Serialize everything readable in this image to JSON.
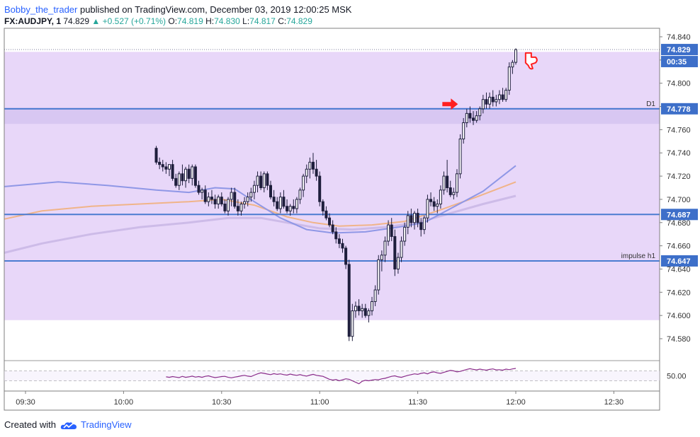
{
  "header": {
    "author": "Bobby_the_trader",
    "published_text": " published on TradingView.com, December 03, 2019 12:00:25 MSK"
  },
  "symbol_line": {
    "symbol": "FX:AUDJPY, 1",
    "last": "74.829",
    "change": "▲ +0.527 (+0.71%)",
    "o_label": "O:",
    "o": "74.819",
    "h_label": "H:",
    "h": "74.830",
    "l_label": "L:",
    "l": "74.817",
    "c_label": "C:",
    "c": "74.829"
  },
  "footer": {
    "created_with": "Created with",
    "brand": "TradingView"
  },
  "colors": {
    "zone": "#e8d7f9",
    "zone_dark": "#d8c7f2",
    "level_line": "#4a7bd1",
    "price_badge": "#3d6fc9",
    "candle": "#1e1e3c",
    "ma_blue": "#8f97e6",
    "ma_orange": "#f0b489",
    "ma_lavender": "#cdbbe8",
    "oscillator": "#8a2c8a",
    "annotation": "#ff1f1f"
  },
  "chart_data": {
    "type": "candlestick",
    "price_axis": {
      "ylim": [
        74.57,
        74.845
      ],
      "ticks": [
        "74.840",
        "74.820",
        "74.800",
        "74.780",
        "74.760",
        "74.740",
        "74.720",
        "74.700",
        "74.680",
        "74.660",
        "74.640",
        "74.620",
        "74.600",
        "74.580"
      ]
    },
    "time_axis": {
      "ticks": [
        {
          "t": 20,
          "label": "09:30"
        },
        {
          "t": 50,
          "label": "10:00"
        },
        {
          "t": 80,
          "label": "10:30"
        },
        {
          "t": 110,
          "label": "11:00"
        },
        {
          "t": 140,
          "label": "11:30"
        },
        {
          "t": 170,
          "label": "12:00"
        },
        {
          "t": 200,
          "label": "12:30"
        }
      ],
      "xlim": [
        13.5,
        214
      ]
    },
    "zone": {
      "from": 74.596,
      "to": 74.827
    },
    "zone_dark": {
      "from": 74.765,
      "to": 74.779
    },
    "levels": [
      {
        "price": 74.778,
        "badge": "74.778",
        "label": "D1"
      },
      {
        "price": 74.687,
        "badge": "74.687",
        "label": ""
      },
      {
        "price": 74.647,
        "badge": "74.647",
        "label": "impulse h1"
      }
    ],
    "last_price": {
      "price": 74.829,
      "badge": "74.829",
      "countdown": "00:35"
    },
    "candles": [
      {
        "o": 74.744,
        "h": 74.746,
        "l": 74.73,
        "c": 74.732
      },
      {
        "o": 74.732,
        "h": 74.736,
        "l": 74.726,
        "c": 74.73
      },
      {
        "o": 74.73,
        "h": 74.734,
        "l": 74.724,
        "c": 74.728
      },
      {
        "o": 74.728,
        "h": 74.732,
        "l": 74.722,
        "c": 74.726
      },
      {
        "o": 74.726,
        "h": 74.73,
        "l": 74.72,
        "c": 74.73
      },
      {
        "o": 74.73,
        "h": 74.734,
        "l": 74.716,
        "c": 74.718
      },
      {
        "o": 74.718,
        "h": 74.722,
        "l": 74.71,
        "c": 74.712
      },
      {
        "o": 74.712,
        "h": 74.724,
        "l": 74.708,
        "c": 74.722
      },
      {
        "o": 74.722,
        "h": 74.73,
        "l": 74.712,
        "c": 74.716
      },
      {
        "o": 74.716,
        "h": 74.728,
        "l": 74.71,
        "c": 74.726
      },
      {
        "o": 74.726,
        "h": 74.73,
        "l": 74.714,
        "c": 74.718
      },
      {
        "o": 74.718,
        "h": 74.73,
        "l": 74.712,
        "c": 74.728
      },
      {
        "o": 74.728,
        "h": 74.73,
        "l": 74.71,
        "c": 74.712
      },
      {
        "o": 74.712,
        "h": 74.716,
        "l": 74.704,
        "c": 74.706
      },
      {
        "o": 74.706,
        "h": 74.71,
        "l": 74.7,
        "c": 74.708
      },
      {
        "o": 74.708,
        "h": 74.712,
        "l": 74.696,
        "c": 74.698
      },
      {
        "o": 74.698,
        "h": 74.706,
        "l": 74.694,
        "c": 74.702
      },
      {
        "o": 74.702,
        "h": 74.708,
        "l": 74.696,
        "c": 74.7
      },
      {
        "o": 74.7,
        "h": 74.704,
        "l": 74.692,
        "c": 74.696
      },
      {
        "o": 74.696,
        "h": 74.704,
        "l": 74.692,
        "c": 74.702
      },
      {
        "o": 74.702,
        "h": 74.706,
        "l": 74.694,
        "c": 74.696
      },
      {
        "o": 74.696,
        "h": 74.7,
        "l": 74.688,
        "c": 74.69
      },
      {
        "o": 74.69,
        "h": 74.702,
        "l": 74.686,
        "c": 74.7
      },
      {
        "o": 74.7,
        "h": 74.71,
        "l": 74.694,
        "c": 74.706
      },
      {
        "o": 74.706,
        "h": 74.71,
        "l": 74.692,
        "c": 74.694
      },
      {
        "o": 74.694,
        "h": 74.7,
        "l": 74.686,
        "c": 74.69
      },
      {
        "o": 74.69,
        "h": 74.698,
        "l": 74.686,
        "c": 74.696
      },
      {
        "o": 74.696,
        "h": 74.702,
        "l": 74.692,
        "c": 74.698
      },
      {
        "o": 74.698,
        "h": 74.706,
        "l": 74.694,
        "c": 74.702
      },
      {
        "o": 74.702,
        "h": 74.71,
        "l": 74.698,
        "c": 74.706
      },
      {
        "o": 74.706,
        "h": 74.716,
        "l": 74.7,
        "c": 74.712
      },
      {
        "o": 74.712,
        "h": 74.724,
        "l": 74.706,
        "c": 74.72
      },
      {
        "o": 74.72,
        "h": 74.724,
        "l": 74.708,
        "c": 74.71
      },
      {
        "o": 74.71,
        "h": 74.724,
        "l": 74.706,
        "c": 74.722
      },
      {
        "o": 74.722,
        "h": 74.724,
        "l": 74.708,
        "c": 74.712
      },
      {
        "o": 74.712,
        "h": 74.716,
        "l": 74.7,
        "c": 74.702
      },
      {
        "o": 74.702,
        "h": 74.708,
        "l": 74.694,
        "c": 74.698
      },
      {
        "o": 74.698,
        "h": 74.702,
        "l": 74.69,
        "c": 74.692
      },
      {
        "o": 74.692,
        "h": 74.706,
        "l": 74.688,
        "c": 74.702
      },
      {
        "o": 74.702,
        "h": 74.708,
        "l": 74.692,
        "c": 74.694
      },
      {
        "o": 74.694,
        "h": 74.7,
        "l": 74.688,
        "c": 74.69
      },
      {
        "o": 74.69,
        "h": 74.696,
        "l": 74.686,
        "c": 74.694
      },
      {
        "o": 74.694,
        "h": 74.7,
        "l": 74.688,
        "c": 74.692
      },
      {
        "o": 74.692,
        "h": 74.702,
        "l": 74.688,
        "c": 74.7
      },
      {
        "o": 74.7,
        "h": 74.71,
        "l": 74.696,
        "c": 74.708
      },
      {
        "o": 74.708,
        "h": 74.722,
        "l": 74.702,
        "c": 74.72
      },
      {
        "o": 74.72,
        "h": 74.73,
        "l": 74.714,
        "c": 74.726
      },
      {
        "o": 74.726,
        "h": 74.736,
        "l": 74.718,
        "c": 74.732
      },
      {
        "o": 74.732,
        "h": 74.74,
        "l": 74.722,
        "c": 74.726
      },
      {
        "o": 74.726,
        "h": 74.734,
        "l": 74.716,
        "c": 74.72
      },
      {
        "o": 74.72,
        "h": 74.724,
        "l": 74.694,
        "c": 74.698
      },
      {
        "o": 74.698,
        "h": 74.7,
        "l": 74.686,
        "c": 74.69
      },
      {
        "o": 74.69,
        "h": 74.694,
        "l": 74.682,
        "c": 74.684
      },
      {
        "o": 74.684,
        "h": 74.688,
        "l": 74.676,
        "c": 74.678
      },
      {
        "o": 74.678,
        "h": 74.682,
        "l": 74.67,
        "c": 74.672
      },
      {
        "o": 74.672,
        "h": 74.676,
        "l": 74.662,
        "c": 74.666
      },
      {
        "o": 74.666,
        "h": 74.67,
        "l": 74.658,
        "c": 74.662
      },
      {
        "o": 74.662,
        "h": 74.666,
        "l": 74.654,
        "c": 74.658
      },
      {
        "o": 74.658,
        "h": 74.66,
        "l": 74.64,
        "c": 74.644
      },
      {
        "o": 74.644,
        "h": 74.648,
        "l": 74.578,
        "c": 74.582
      },
      {
        "o": 74.582,
        "h": 74.61,
        "l": 74.578,
        "c": 74.604
      },
      {
        "o": 74.604,
        "h": 74.612,
        "l": 74.598,
        "c": 74.608
      },
      {
        "o": 74.608,
        "h": 74.614,
        "l": 74.6,
        "c": 74.604
      },
      {
        "o": 74.604,
        "h": 74.61,
        "l": 74.598,
        "c": 74.606
      },
      {
        "o": 74.606,
        "h": 74.61,
        "l": 74.598,
        "c": 74.6
      },
      {
        "o": 74.6,
        "h": 74.606,
        "l": 74.594,
        "c": 74.604
      },
      {
        "o": 74.604,
        "h": 74.616,
        "l": 74.6,
        "c": 74.612
      },
      {
        "o": 74.612,
        "h": 74.626,
        "l": 74.608,
        "c": 74.622
      },
      {
        "o": 74.622,
        "h": 74.652,
        "l": 74.618,
        "c": 74.648
      },
      {
        "o": 74.648,
        "h": 74.656,
        "l": 74.638,
        "c": 74.652
      },
      {
        "o": 74.652,
        "h": 74.668,
        "l": 74.646,
        "c": 74.664
      },
      {
        "o": 74.664,
        "h": 74.682,
        "l": 74.66,
        "c": 74.678
      },
      {
        "o": 74.678,
        "h": 74.684,
        "l": 74.664,
        "c": 74.668
      },
      {
        "o": 74.668,
        "h": 74.674,
        "l": 74.634,
        "c": 74.64
      },
      {
        "o": 74.64,
        "h": 74.654,
        "l": 74.636,
        "c": 74.65
      },
      {
        "o": 74.65,
        "h": 74.668,
        "l": 74.646,
        "c": 74.664
      },
      {
        "o": 74.664,
        "h": 74.68,
        "l": 74.66,
        "c": 74.676
      },
      {
        "o": 74.676,
        "h": 74.69,
        "l": 74.67,
        "c": 74.686
      },
      {
        "o": 74.686,
        "h": 74.692,
        "l": 74.676,
        "c": 74.68
      },
      {
        "o": 74.68,
        "h": 74.69,
        "l": 74.674,
        "c": 74.688
      },
      {
        "o": 74.688,
        "h": 74.692,
        "l": 74.676,
        "c": 74.68
      },
      {
        "o": 74.68,
        "h": 74.684,
        "l": 74.668,
        "c": 74.674
      },
      {
        "o": 74.674,
        "h": 74.686,
        "l": 74.67,
        "c": 74.684
      },
      {
        "o": 74.684,
        "h": 74.704,
        "l": 74.68,
        "c": 74.7
      },
      {
        "o": 74.7,
        "h": 74.706,
        "l": 74.694,
        "c": 74.698
      },
      {
        "o": 74.698,
        "h": 74.702,
        "l": 74.69,
        "c": 74.694
      },
      {
        "o": 74.694,
        "h": 74.7,
        "l": 74.688,
        "c": 74.696
      },
      {
        "o": 74.696,
        "h": 74.712,
        "l": 74.692,
        "c": 74.708
      },
      {
        "o": 74.708,
        "h": 74.724,
        "l": 74.704,
        "c": 74.72
      },
      {
        "o": 74.72,
        "h": 74.734,
        "l": 74.706,
        "c": 74.71
      },
      {
        "o": 74.71,
        "h": 74.716,
        "l": 74.702,
        "c": 74.704
      },
      {
        "o": 74.704,
        "h": 74.71,
        "l": 74.7,
        "c": 74.706
      },
      {
        "o": 74.706,
        "h": 74.726,
        "l": 74.702,
        "c": 74.722
      },
      {
        "o": 74.722,
        "h": 74.756,
        "l": 74.718,
        "c": 74.752
      },
      {
        "o": 74.752,
        "h": 74.77,
        "l": 74.748,
        "c": 74.766
      },
      {
        "o": 74.766,
        "h": 74.778,
        "l": 74.762,
        "c": 74.774
      },
      {
        "o": 74.774,
        "h": 74.78,
        "l": 74.766,
        "c": 74.77
      },
      {
        "o": 74.77,
        "h": 74.776,
        "l": 74.764,
        "c": 74.768
      },
      {
        "o": 74.768,
        "h": 74.776,
        "l": 74.766,
        "c": 74.772
      },
      {
        "o": 74.772,
        "h": 74.78,
        "l": 74.768,
        "c": 74.778
      },
      {
        "o": 74.778,
        "h": 74.79,
        "l": 74.774,
        "c": 74.786
      },
      {
        "o": 74.786,
        "h": 74.792,
        "l": 74.778,
        "c": 74.782
      },
      {
        "o": 74.782,
        "h": 74.792,
        "l": 74.778,
        "c": 74.788
      },
      {
        "o": 74.788,
        "h": 74.794,
        "l": 74.78,
        "c": 74.784
      },
      {
        "o": 74.784,
        "h": 74.79,
        "l": 74.78,
        "c": 74.786
      },
      {
        "o": 74.786,
        "h": 74.794,
        "l": 74.782,
        "c": 74.79
      },
      {
        "o": 74.79,
        "h": 74.796,
        "l": 74.784,
        "c": 74.786
      },
      {
        "o": 74.786,
        "h": 74.796,
        "l": 74.784,
        "c": 74.794
      },
      {
        "o": 74.794,
        "h": 74.818,
        "l": 74.79,
        "c": 74.814
      },
      {
        "o": 74.814,
        "h": 74.82,
        "l": 74.808,
        "c": 74.818
      },
      {
        "o": 74.818,
        "h": 74.83,
        "l": 74.816,
        "c": 74.829
      }
    ],
    "ma_blue": [
      [
        13.5,
        74.711
      ],
      [
        30,
        74.715
      ],
      [
        45,
        74.712
      ],
      [
        60,
        74.708
      ],
      [
        70,
        74.706
      ],
      [
        78,
        74.71
      ],
      [
        84,
        74.709
      ],
      [
        90,
        74.698
      ],
      [
        98,
        74.684
      ],
      [
        106,
        74.674
      ],
      [
        114,
        74.671
      ],
      [
        124,
        74.672
      ],
      [
        134,
        74.676
      ],
      [
        142,
        74.68
      ],
      [
        150,
        74.692
      ],
      [
        160,
        74.707
      ],
      [
        170,
        74.729
      ]
    ],
    "ma_orange": [
      [
        13.5,
        74.683
      ],
      [
        25,
        74.69
      ],
      [
        40,
        74.694
      ],
      [
        55,
        74.696
      ],
      [
        70,
        74.698
      ],
      [
        80,
        74.7
      ],
      [
        90,
        74.695
      ],
      [
        100,
        74.685
      ],
      [
        108,
        74.68
      ],
      [
        116,
        74.677
      ],
      [
        126,
        74.678
      ],
      [
        136,
        74.681
      ],
      [
        146,
        74.69
      ],
      [
        158,
        74.702
      ],
      [
        170,
        74.715
      ]
    ],
    "ma_lavender": [
      [
        13.5,
        74.654
      ],
      [
        25,
        74.662
      ],
      [
        40,
        74.67
      ],
      [
        55,
        74.676
      ],
      [
        70,
        74.68
      ],
      [
        82,
        74.684
      ],
      [
        92,
        74.684
      ],
      [
        100,
        74.68
      ],
      [
        110,
        74.675
      ],
      [
        120,
        74.674
      ],
      [
        130,
        74.676
      ],
      [
        140,
        74.68
      ],
      [
        150,
        74.688
      ],
      [
        160,
        74.696
      ],
      [
        170,
        74.703
      ]
    ],
    "oscillator": {
      "ticks": [
        "50.00"
      ],
      "ylim": [
        0,
        100
      ],
      "bands": [
        70,
        30
      ],
      "values": [
        46,
        44,
        47,
        45,
        43,
        48,
        44,
        46,
        49,
        45,
        47,
        44,
        48,
        50,
        46,
        43,
        45,
        47,
        48,
        44,
        42,
        45,
        47,
        50,
        52,
        49,
        47,
        53,
        58,
        62,
        60,
        57,
        55,
        59,
        56,
        58,
        55,
        53,
        57,
        54,
        52,
        55,
        51,
        49,
        53,
        56,
        52,
        50,
        48,
        42,
        36,
        33,
        35,
        30,
        34,
        38,
        36,
        30,
        24,
        18,
        28,
        32,
        30,
        33,
        35,
        34,
        38,
        40,
        44,
        48,
        50,
        46,
        44,
        48,
        52,
        55,
        58,
        56,
        60,
        62,
        58,
        64,
        66,
        62,
        60,
        64,
        68,
        72,
        70,
        66,
        68,
        72,
        76,
        79,
        76,
        74,
        77,
        75,
        73,
        76,
        78,
        74,
        75,
        73,
        77,
        75,
        78,
        80
      ]
    },
    "annotations": [
      {
        "type": "arrow-right",
        "t": 151,
        "price": 74.782
      },
      {
        "type": "thumbs-down",
        "t": 173,
        "price": 74.82
      }
    ]
  }
}
